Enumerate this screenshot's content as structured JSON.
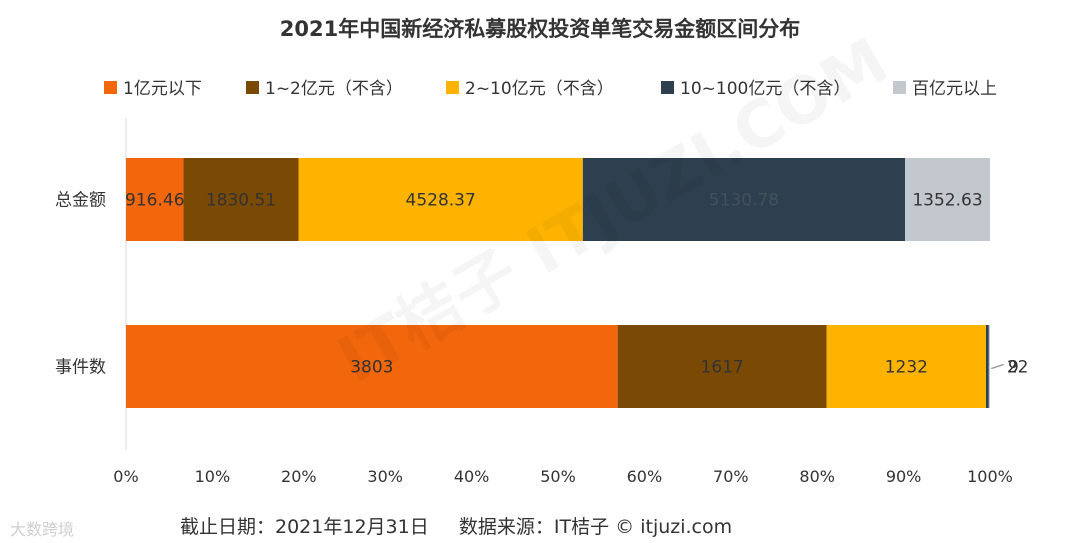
{
  "chart_data": {
    "type": "bar",
    "orientation": "horizontal",
    "stacked": "percent",
    "title": "2021年中国新经济私募股权投资单笔交易金额区间分布",
    "categories": [
      "总金额",
      "事件数"
    ],
    "series": [
      {
        "name": "1亿元以下",
        "color": "#F2660C",
        "values": [
          916.46,
          3803
        ],
        "labels": [
          "916.46",
          "3803"
        ]
      },
      {
        "name": "1~2亿元（不含）",
        "color": "#7A4A05",
        "values": [
          1830.51,
          1617
        ],
        "labels": [
          "1830.51",
          "1617"
        ]
      },
      {
        "name": "2~10亿元（不含）",
        "color": "#FDB300",
        "values": [
          4528.37,
          1232
        ],
        "labels": [
          "4528.37",
          "1232"
        ]
      },
      {
        "name": "10~100亿元（不含）",
        "color": "#2E3F4F",
        "values": [
          5130.78,
          22
        ],
        "labels": [
          "5130.78",
          "22"
        ]
      },
      {
        "name": "百亿元以上",
        "color": "#C2C8CE",
        "values": [
          1352.63,
          9
        ],
        "labels": [
          "1352.63",
          "9"
        ]
      }
    ],
    "xlim": [
      0,
      100
    ],
    "xticks": [
      "0%",
      "10%",
      "20%",
      "30%",
      "40%",
      "50%",
      "60%",
      "70%",
      "80%",
      "90%",
      "100%"
    ],
    "legend": "top"
  },
  "footer": {
    "badge": "大数跨境",
    "date_label": "截止日期：2021年12月31日",
    "source_label": "数据来源：IT桔子 © itjuzi.com"
  },
  "watermark": "IT桔子 ITJUZI.COM"
}
